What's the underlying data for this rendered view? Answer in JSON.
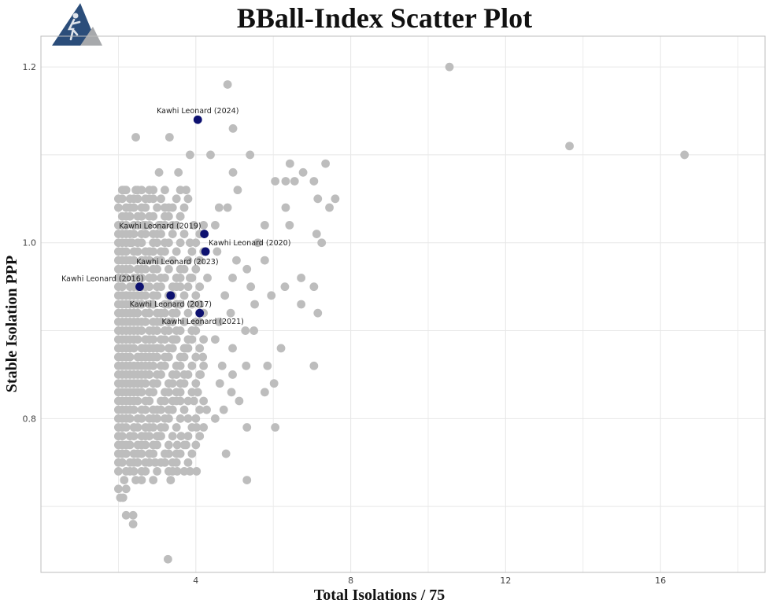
{
  "chart_data": {
    "type": "scatter",
    "title": "BBall-Index Scatter Plot",
    "xlabel": "Total Isolations / 75",
    "ylabel": "Stable Isolation PPP",
    "xlim": [
      0,
      18.7
    ],
    "ylim": [
      0.625,
      1.235
    ],
    "x_ticks": [
      4,
      8,
      12,
      16
    ],
    "x_tick_labels": [
      "4",
      "8",
      "12",
      "16"
    ],
    "y_ticks": [
      0.8,
      1.0,
      1.2
    ],
    "y_tick_labels": [
      "0.8",
      "1.0",
      "1.2"
    ],
    "grid": true,
    "colors": {
      "background_points": "#bdbdbd",
      "highlight_points": "#0d1170",
      "grid": "#e8e8e8",
      "logo": "#2b4d7a"
    },
    "series": [
      {
        "name": "",
        "color": "#bdbdbd",
        "points": [
          [
            10.55,
            1.2
          ],
          [
            13.65,
            1.11
          ],
          [
            16.62,
            1.1
          ],
          [
            4.82,
            1.18
          ],
          [
            4.96,
            1.13
          ],
          [
            2.45,
            1.12
          ],
          [
            3.32,
            1.12
          ],
          [
            4.38,
            1.1
          ],
          [
            3.85,
            1.1
          ],
          [
            5.4,
            1.1
          ],
          [
            3.05,
            1.08
          ],
          [
            3.55,
            1.08
          ],
          [
            4.96,
            1.08
          ],
          [
            6.55,
            1.07
          ],
          [
            7.35,
            1.09
          ],
          [
            6.43,
            1.09
          ],
          [
            6.77,
            1.08
          ],
          [
            6.05,
            1.07
          ],
          [
            7.05,
            1.07
          ],
          [
            7.6,
            1.05
          ],
          [
            7.15,
            1.05
          ],
          [
            7.45,
            1.04
          ],
          [
            6.32,
            1.07
          ],
          [
            2.15,
            1.06
          ],
          [
            2.45,
            1.06
          ],
          [
            3.75,
            1.06
          ],
          [
            5.08,
            1.06
          ],
          [
            2.9,
            1.05
          ],
          [
            4.6,
            1.04
          ],
          [
            4.82,
            1.04
          ],
          [
            3.2,
            1.04
          ],
          [
            2.65,
            1.02
          ],
          [
            3.6,
            1.03
          ],
          [
            3.95,
            1.02
          ],
          [
            5.78,
            1.02
          ],
          [
            6.32,
            1.04
          ],
          [
            6.42,
            1.02
          ],
          [
            7.12,
            1.01
          ],
          [
            7.25,
            1.0
          ],
          [
            5.6,
            1.0
          ],
          [
            3.05,
            1.02
          ],
          [
            3.4,
            1.02
          ],
          [
            2.9,
            1.01
          ],
          [
            4.5,
            1.02
          ],
          [
            2.35,
            1.0
          ],
          [
            2.8,
            0.99
          ],
          [
            3.1,
            0.98
          ],
          [
            3.85,
            1.0
          ],
          [
            4.55,
            0.99
          ],
          [
            5.05,
            0.98
          ],
          [
            5.32,
            0.97
          ],
          [
            5.78,
            0.98
          ],
          [
            6.3,
            0.95
          ],
          [
            6.72,
            0.96
          ],
          [
            7.05,
            0.95
          ],
          [
            7.15,
            0.92
          ],
          [
            6.72,
            0.93
          ],
          [
            5.95,
            0.94
          ],
          [
            5.52,
            0.93
          ],
          [
            5.42,
            0.95
          ],
          [
            5.5,
            0.9
          ],
          [
            4.75,
            0.94
          ],
          [
            4.95,
            0.96
          ],
          [
            4.3,
            0.96
          ],
          [
            3.85,
            0.96
          ],
          [
            3.6,
            0.95
          ],
          [
            4.1,
            0.93
          ],
          [
            4.6,
            0.91
          ],
          [
            4.9,
            0.92
          ],
          [
            5.28,
            0.9
          ],
          [
            4.5,
            0.89
          ],
          [
            3.9,
            0.9
          ],
          [
            3.75,
            0.88
          ],
          [
            3.45,
            0.89
          ],
          [
            3.2,
            0.9
          ],
          [
            4.95,
            0.88
          ],
          [
            4.18,
            0.87
          ],
          [
            4.68,
            0.86
          ],
          [
            4.12,
            0.85
          ],
          [
            4.95,
            0.85
          ],
          [
            5.3,
            0.86
          ],
          [
            5.85,
            0.86
          ],
          [
            6.2,
            0.88
          ],
          [
            7.05,
            0.86
          ],
          [
            6.02,
            0.84
          ],
          [
            4.92,
            0.83
          ],
          [
            5.12,
            0.82
          ],
          [
            5.78,
            0.83
          ],
          [
            4.62,
            0.84
          ],
          [
            4.05,
            0.83
          ],
          [
            3.95,
            0.82
          ],
          [
            3.6,
            0.82
          ],
          [
            4.72,
            0.81
          ],
          [
            4.5,
            0.8
          ],
          [
            4.28,
            0.81
          ],
          [
            3.8,
            0.8
          ],
          [
            3.3,
            0.81
          ],
          [
            5.32,
            0.79
          ],
          [
            6.05,
            0.79
          ],
          [
            4.02,
            0.79
          ],
          [
            3.62,
            0.78
          ],
          [
            3.05,
            0.78
          ],
          [
            3.52,
            0.77
          ],
          [
            3.75,
            0.77
          ],
          [
            2.8,
            0.76
          ],
          [
            3.3,
            0.76
          ],
          [
            4.78,
            0.76
          ],
          [
            3.2,
            0.75
          ],
          [
            2.95,
            0.75
          ],
          [
            3.52,
            0.74
          ],
          [
            3.85,
            0.74
          ],
          [
            4.02,
            0.74
          ],
          [
            2.9,
            0.73
          ],
          [
            3.35,
            0.73
          ],
          [
            5.32,
            0.73
          ],
          [
            2.45,
            0.73
          ],
          [
            2.6,
            0.73
          ],
          [
            2.15,
            0.73
          ],
          [
            2.0,
            0.72
          ],
          [
            2.2,
            0.72
          ],
          [
            2.12,
            0.71
          ],
          [
            2.05,
            0.71
          ],
          [
            2.2,
            0.69
          ],
          [
            2.38,
            0.69
          ],
          [
            2.38,
            0.68
          ],
          [
            3.28,
            0.64
          ]
        ],
        "dense_cluster": {
          "x_range": [
            2.0,
            4.2
          ],
          "y_range": [
            0.74,
            1.06
          ]
        }
      },
      {
        "name": "",
        "color": "#0d1170",
        "points": [
          {
            "x": 4.05,
            "y": 1.14,
            "label": "Kawhi Leonard (2024)"
          },
          {
            "x": 4.22,
            "y": 1.01,
            "label": "Kawhi Leonard (2019)"
          },
          {
            "x": 4.25,
            "y": 0.99,
            "label": "Kawhi Leonard (2020)"
          },
          {
            "x": 4.3,
            "y": 0.99,
            "label": "Kawhi Leonard (2023)"
          },
          {
            "x": 2.55,
            "y": 0.95,
            "label": "Kawhi Leonard (2016)"
          },
          {
            "x": 3.35,
            "y": 0.94,
            "label": "Kawhi Leonard (2017)"
          },
          {
            "x": 4.1,
            "y": 0.92,
            "label": "Kawhi Leonard (2021)"
          }
        ]
      }
    ]
  }
}
